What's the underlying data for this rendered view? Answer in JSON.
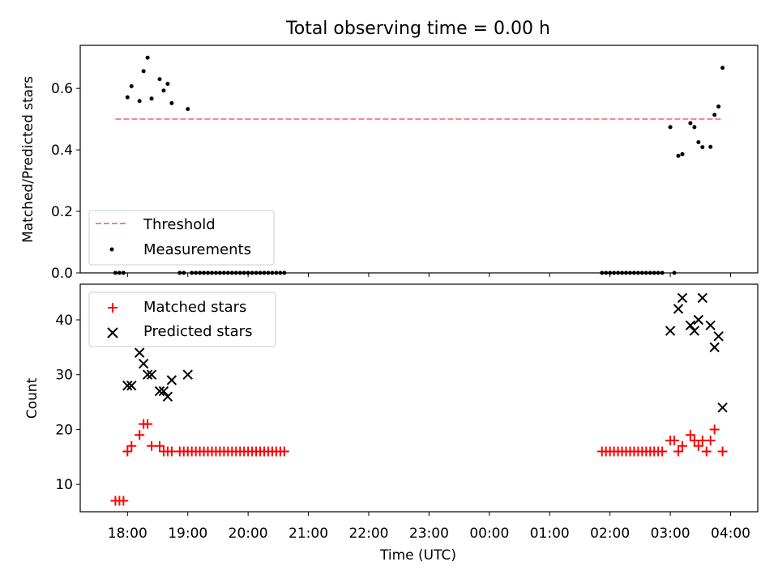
{
  "chart_data": [
    {
      "type": "scatter",
      "title": "Total observing time = 0.00 h",
      "xlabel": "",
      "ylabel": "Matched/Predicted stars",
      "ylim": [
        0,
        0.74
      ],
      "yticks": [
        0.0,
        0.2,
        0.4,
        0.6
      ],
      "ytick_labels": [
        "0.0",
        "0.2",
        "0.4",
        "0.6"
      ],
      "xlim": [
        "17:13",
        "04:27"
      ],
      "legend_position": "lower-left",
      "series": [
        {
          "name": "Threshold",
          "style": "dashed-line",
          "color": "#ff7f7f",
          "points": [
            [
              "17:48",
              0.5
            ],
            [
              "03:52",
              0.5
            ]
          ]
        },
        {
          "name": "Measurements",
          "style": "dot",
          "color": "#000000",
          "points": [
            [
              "17:48",
              0.0
            ],
            [
              "17:52",
              0.0
            ],
            [
              "17:56",
              0.0
            ],
            [
              "18:00",
              0.571
            ],
            [
              "18:04",
              0.607
            ],
            [
              "18:12",
              0.559
            ],
            [
              "18:16",
              0.656
            ],
            [
              "18:20",
              0.7
            ],
            [
              "18:24",
              0.567
            ],
            [
              "18:32",
              0.63
            ],
            [
              "18:36",
              0.593
            ],
            [
              "18:40",
              0.615
            ],
            [
              "18:44",
              0.552
            ],
            [
              "18:52",
              0.0
            ],
            [
              "18:56",
              0.0
            ],
            [
              "19:00",
              0.533
            ],
            [
              "19:04",
              0.0
            ],
            [
              "19:08",
              0.0
            ],
            [
              "19:12",
              0.0
            ],
            [
              "19:16",
              0.0
            ],
            [
              "19:20",
              0.0
            ],
            [
              "19:24",
              0.0
            ],
            [
              "19:28",
              0.0
            ],
            [
              "19:32",
              0.0
            ],
            [
              "19:36",
              0.0
            ],
            [
              "19:40",
              0.0
            ],
            [
              "19:44",
              0.0
            ],
            [
              "19:48",
              0.0
            ],
            [
              "19:52",
              0.0
            ],
            [
              "19:56",
              0.0
            ],
            [
              "20:00",
              0.0
            ],
            [
              "20:04",
              0.0
            ],
            [
              "20:08",
              0.0
            ],
            [
              "20:12",
              0.0
            ],
            [
              "20:16",
              0.0
            ],
            [
              "20:20",
              0.0
            ],
            [
              "20:24",
              0.0
            ],
            [
              "20:28",
              0.0
            ],
            [
              "20:32",
              0.0
            ],
            [
              "20:36",
              0.0
            ],
            [
              "01:52",
              0.0
            ],
            [
              "01:56",
              0.0
            ],
            [
              "02:00",
              0.0
            ],
            [
              "02:04",
              0.0
            ],
            [
              "02:08",
              0.0
            ],
            [
              "02:12",
              0.0
            ],
            [
              "02:16",
              0.0
            ],
            [
              "02:20",
              0.0
            ],
            [
              "02:24",
              0.0
            ],
            [
              "02:28",
              0.0
            ],
            [
              "02:32",
              0.0
            ],
            [
              "02:36",
              0.0
            ],
            [
              "02:40",
              0.0
            ],
            [
              "02:44",
              0.0
            ],
            [
              "02:48",
              0.0
            ],
            [
              "02:52",
              0.0
            ],
            [
              "03:00",
              0.474
            ],
            [
              "03:04",
              0.0
            ],
            [
              "03:08",
              0.381
            ],
            [
              "03:12",
              0.386
            ],
            [
              "03:20",
              0.487
            ],
            [
              "03:24",
              0.474
            ],
            [
              "03:28",
              0.425
            ],
            [
              "03:32",
              0.409
            ],
            [
              "03:40",
              0.41
            ],
            [
              "03:44",
              0.514
            ],
            [
              "03:48",
              0.541
            ],
            [
              "03:52",
              0.667
            ]
          ]
        }
      ]
    },
    {
      "type": "scatter",
      "title": "",
      "xlabel": "Time (UTC)",
      "ylabel": "Count",
      "ylim": [
        5,
        46.5
      ],
      "yticks": [
        10,
        20,
        30,
        40
      ],
      "ytick_labels": [
        "10",
        "20",
        "30",
        "40"
      ],
      "xlim": [
        "17:13",
        "04:27"
      ],
      "xtick_labels": [
        "18:00",
        "19:00",
        "20:00",
        "21:00",
        "22:00",
        "23:00",
        "00:00",
        "01:00",
        "02:00",
        "03:00",
        "04:00"
      ],
      "legend_position": "upper-left",
      "series": [
        {
          "name": "Matched stars",
          "marker": "plus",
          "color": "#ff0000",
          "points": [
            [
              "17:48",
              7
            ],
            [
              "17:52",
              7
            ],
            [
              "17:56",
              7
            ],
            [
              "18:00",
              16
            ],
            [
              "18:04",
              17
            ],
            [
              "18:12",
              19
            ],
            [
              "18:16",
              21
            ],
            [
              "18:20",
              21
            ],
            [
              "18:24",
              17
            ],
            [
              "18:32",
              17
            ],
            [
              "18:36",
              16
            ],
            [
              "18:40",
              16
            ],
            [
              "18:44",
              16
            ],
            [
              "18:52",
              16
            ],
            [
              "18:56",
              16
            ],
            [
              "19:00",
              16
            ],
            [
              "19:04",
              16
            ],
            [
              "19:08",
              16
            ],
            [
              "19:12",
              16
            ],
            [
              "19:16",
              16
            ],
            [
              "19:20",
              16
            ],
            [
              "19:24",
              16
            ],
            [
              "19:28",
              16
            ],
            [
              "19:32",
              16
            ],
            [
              "19:36",
              16
            ],
            [
              "19:40",
              16
            ],
            [
              "19:44",
              16
            ],
            [
              "19:48",
              16
            ],
            [
              "19:52",
              16
            ],
            [
              "19:56",
              16
            ],
            [
              "20:00",
              16
            ],
            [
              "20:04",
              16
            ],
            [
              "20:08",
              16
            ],
            [
              "20:12",
              16
            ],
            [
              "20:16",
              16
            ],
            [
              "20:20",
              16
            ],
            [
              "20:24",
              16
            ],
            [
              "20:28",
              16
            ],
            [
              "20:32",
              16
            ],
            [
              "20:36",
              16
            ],
            [
              "01:52",
              16
            ],
            [
              "01:56",
              16
            ],
            [
              "02:00",
              16
            ],
            [
              "02:04",
              16
            ],
            [
              "02:08",
              16
            ],
            [
              "02:12",
              16
            ],
            [
              "02:16",
              16
            ],
            [
              "02:20",
              16
            ],
            [
              "02:24",
              16
            ],
            [
              "02:28",
              16
            ],
            [
              "02:32",
              16
            ],
            [
              "02:36",
              16
            ],
            [
              "02:40",
              16
            ],
            [
              "02:44",
              16
            ],
            [
              "02:48",
              16
            ],
            [
              "02:52",
              16
            ],
            [
              "03:00",
              18
            ],
            [
              "03:04",
              18
            ],
            [
              "03:08",
              16
            ],
            [
              "03:12",
              17
            ],
            [
              "03:20",
              19
            ],
            [
              "03:24",
              18
            ],
            [
              "03:28",
              17
            ],
            [
              "03:32",
              18
            ],
            [
              "03:36",
              16
            ],
            [
              "03:40",
              18
            ],
            [
              "03:44",
              20
            ],
            [
              "03:52",
              16
            ]
          ]
        },
        {
          "name": "Predicted stars",
          "marker": "x",
          "color": "#000000",
          "points": [
            [
              "18:00",
              28
            ],
            [
              "18:04",
              28
            ],
            [
              "18:12",
              34
            ],
            [
              "18:16",
              32
            ],
            [
              "18:20",
              30
            ],
            [
              "18:24",
              30
            ],
            [
              "18:32",
              27
            ],
            [
              "18:36",
              27
            ],
            [
              "18:40",
              26
            ],
            [
              "18:44",
              29
            ],
            [
              "19:00",
              30
            ],
            [
              "03:00",
              38
            ],
            [
              "03:08",
              42
            ],
            [
              "03:12",
              44
            ],
            [
              "03:20",
              39
            ],
            [
              "03:24",
              38
            ],
            [
              "03:28",
              40
            ],
            [
              "03:32",
              44
            ],
            [
              "03:40",
              39
            ],
            [
              "03:44",
              35
            ],
            [
              "03:48",
              37
            ],
            [
              "03:52",
              24
            ]
          ]
        }
      ]
    }
  ]
}
